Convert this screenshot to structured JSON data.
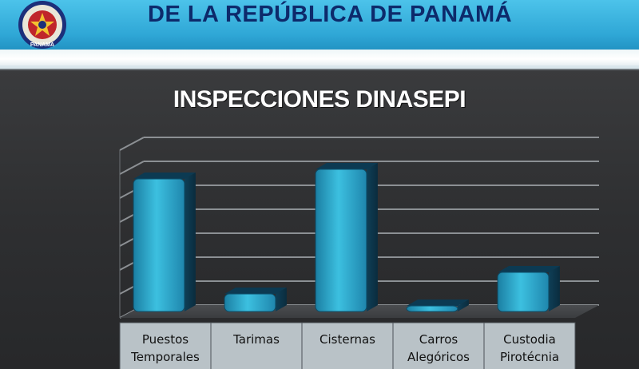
{
  "header": {
    "title": "DE LA REPÚBLICA DE PANAMÁ",
    "logo_text": "PANAMA"
  },
  "colors": {
    "header_blue": "#2fa7d6",
    "title_navy": "#0d2a6b",
    "slide_bg": "#2e2f31",
    "bar_fill": "#2a9fc1",
    "axis_band": "#b9c2c7"
  },
  "chart_data": {
    "type": "bar",
    "title": "INSPECCIONES DINASEPI",
    "categories": [
      [
        "Puestos",
        "Temporales"
      ],
      [
        "Tarimas"
      ],
      [
        "Cisternas"
      ],
      [
        "Carros",
        "Alegóricos"
      ],
      [
        "Custodia",
        "Pirotécnia"
      ]
    ],
    "values": [
      58,
      10,
      62,
      5,
      19
    ],
    "ylim": [
      0,
      70
    ],
    "grid": true,
    "legend": "none",
    "xlabel": "",
    "ylabel": ""
  }
}
